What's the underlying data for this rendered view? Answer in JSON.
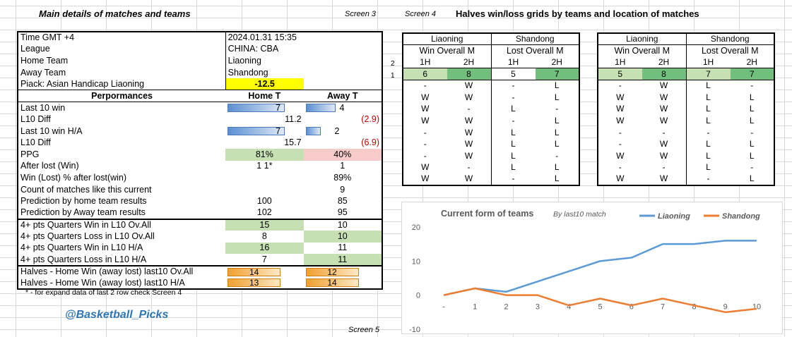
{
  "headers": {
    "main": "Main details of matches and teams",
    "screen3": "Screen 3",
    "screen4": "Screen 4",
    "halves": "Halves win/loss grids by teams and location of matches",
    "screen5": "Screen 5",
    "footnote": "* - for expand data of last 2 row check Screen 4",
    "handle": "@Basketball_Picks"
  },
  "info": [
    {
      "label": "Time  GMT +4",
      "value": "2024.01.31 15:35"
    },
    {
      "label": "League",
      "value": "CHINA: CBA"
    },
    {
      "label": "Home Team",
      "value": "Liaoning"
    },
    {
      "label": "Away Team",
      "value": "Shandong"
    },
    {
      "label": "Piack: Asian Handicap Liaoning",
      "value": "-12.5"
    }
  ],
  "perf_header": {
    "label": "Perpormances",
    "home": "Home T",
    "away": "Away T"
  },
  "perf": {
    "last10_win": {
      "label": "Last 10  win",
      "home": "7",
      "away": "4",
      "home_frac": 0.7,
      "away_frac": 0.4
    },
    "l10_diff": {
      "label": "L10 Diff",
      "home": "11.2",
      "away": "(2.9)"
    },
    "last10_win_ha": {
      "label": "Last 10  win H/A",
      "home": "7",
      "away": "2",
      "home_frac": 0.7,
      "away_frac": 0.2
    },
    "l10_diff_ha": {
      "label": "L10 Diff",
      "home": "15.7",
      "away": "(6.9)"
    },
    "ppg": {
      "label": "PPG",
      "home": "81%",
      "away": "40%"
    },
    "after_lost": {
      "label": "After lost (Win)",
      "home": "1 1*",
      "away": "1"
    },
    "win_pct": {
      "label": "Win (Lost) % after lost(win)",
      "home": "",
      "away": "89%"
    },
    "count": {
      "label": "Count of matches like this current",
      "home": "",
      "away": "9"
    },
    "pred_home": {
      "label": "Prediction by home team results",
      "home": "100",
      "away": "85"
    },
    "pred_away": {
      "label": "Prediction by Away team results",
      "home": "102",
      "away": "95"
    }
  },
  "quarters": [
    {
      "label": "4+ pts Quarters Win in L10 Ov.All",
      "home": "15",
      "away": "10",
      "hl": "home"
    },
    {
      "label": "4+ pts Quarters Loss in L10 Ov.All",
      "home": "8",
      "away": "10",
      "hl": "away"
    },
    {
      "label": "4+ pts Quarters Win in L10 H/A",
      "home": "16",
      "away": "11",
      "hl": "home"
    },
    {
      "label": "4+ pts Quarters Loss in L10 H/A",
      "home": "7",
      "away": "11",
      "hl": "away"
    }
  ],
  "halves_rows": [
    {
      "label": "Halves - Home Win  (away lost) last10 Ov.All",
      "home": "14",
      "away": "12"
    },
    {
      "label": "Halves - Home Win  (away lost) last10 H/A",
      "home": "13",
      "away": "14"
    }
  ],
  "grid_overall": {
    "teams": [
      "Liaoning",
      "Shandong"
    ],
    "sub": [
      "Win Overall M",
      "Lost Overall M"
    ],
    "halves": [
      "1H",
      "2H",
      "1H",
      "2H"
    ],
    "totals": [
      "6",
      "8",
      "5",
      "7"
    ],
    "rows": [
      [
        "-",
        "W",
        "-",
        "L"
      ],
      [
        "W",
        "W",
        "-",
        "L"
      ],
      [
        "W",
        "-",
        "L",
        "-"
      ],
      [
        "W",
        "W",
        "-",
        "L"
      ],
      [
        "-",
        "W",
        "L",
        "L"
      ],
      [
        "-",
        "W",
        "L",
        "L"
      ],
      [
        "-",
        "W",
        "L",
        "-"
      ],
      [
        "W",
        "-",
        "L",
        "L"
      ],
      [
        "W",
        "W",
        "-",
        "L"
      ]
    ]
  },
  "grid_location": {
    "teams": [
      "Liaoning",
      "Shandong"
    ],
    "sub": [
      "Win Overall M",
      "Lost Overall M"
    ],
    "halves": [
      "1H",
      "2H",
      "1H",
      "2H"
    ],
    "totals": [
      "5",
      "8",
      "7",
      "7"
    ],
    "rows": [
      [
        "-",
        "W",
        "L",
        "-"
      ],
      [
        "W",
        "W",
        "L",
        "L"
      ],
      [
        "W",
        "W",
        "L",
        "L"
      ],
      [
        "W",
        "W",
        "L",
        "L"
      ],
      [
        "-",
        "-",
        "-",
        "-"
      ],
      [
        "-",
        "W",
        "L",
        "L"
      ],
      [
        "W",
        "W",
        "L",
        "L"
      ],
      [
        "-",
        "-",
        "L",
        "-"
      ],
      [
        "W",
        "W",
        "-",
        "L"
      ]
    ]
  },
  "row_nums": [
    "2",
    "1"
  ],
  "colors": {
    "liaoning": "#5b9bd5",
    "shandong": "#ed7d31",
    "grid": "#d9d9d9"
  },
  "chart_data": {
    "type": "line",
    "title": "Current form of  teams",
    "subtitle": "By last10 match",
    "categories": [
      "-",
      "1",
      "2",
      "3",
      "4",
      "5",
      "6",
      "7",
      "8",
      "9",
      "10"
    ],
    "series": [
      {
        "name": "Liaoning",
        "values": [
          0,
          2,
          1,
          4,
          7,
          10,
          11,
          15,
          15,
          16,
          16
        ]
      },
      {
        "name": "Shandong",
        "values": [
          0,
          2,
          0,
          0,
          -3,
          -1,
          -3,
          -1,
          -3,
          -5,
          -4
        ]
      }
    ],
    "y_ticks": [
      "20",
      "10",
      "0",
      "-10"
    ],
    "ylim": [
      -10,
      20
    ],
    "legend": "top-right",
    "grid": false
  }
}
